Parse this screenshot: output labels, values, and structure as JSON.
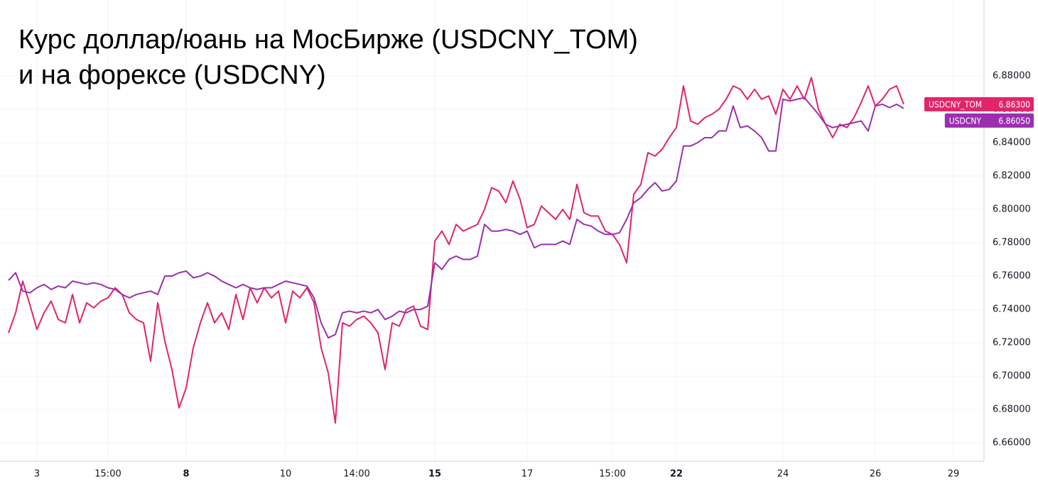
{
  "chart_data": {
    "type": "line",
    "title": [
      "Курс доллар/юань на МосБирже (USDCNY_TOM)",
      "и на форексе (USDCNY)"
    ],
    "categories": [
      null,
      null,
      null,
      null,
      "3",
      null,
      null,
      null,
      null,
      null,
      null,
      null,
      null,
      null,
      "15:00",
      null,
      null,
      null,
      null,
      null,
      null,
      null,
      null,
      null,
      null,
      "8",
      null,
      null,
      null,
      null,
      null,
      null,
      null,
      null,
      null,
      null,
      null,
      null,
      null,
      "10",
      null,
      null,
      null,
      null,
      null,
      null,
      null,
      null,
      null,
      "14:00",
      null,
      null,
      null,
      null,
      null,
      null,
      null,
      null,
      null,
      null,
      "15",
      null,
      null,
      null,
      null,
      null,
      null,
      null,
      null,
      null,
      null,
      null,
      null,
      "17",
      null,
      null,
      null,
      null,
      null,
      null,
      null,
      null,
      null,
      null,
      null,
      "15:00",
      null,
      null,
      null,
      null,
      null,
      null,
      null,
      null,
      "22",
      null,
      null,
      null,
      null,
      null,
      null,
      null,
      null,
      null,
      null,
      null,
      null,
      null,
      null,
      "24",
      null,
      null,
      null,
      null,
      null,
      null,
      null,
      null,
      null,
      null,
      null,
      null,
      "26",
      null,
      null,
      null,
      null,
      null,
      null,
      null,
      null,
      null,
      null,
      "29",
      null,
      null,
      null,
      null
    ],
    "series": [
      {
        "name": "USDCNY_TOM",
        "color": "#e2246a",
        "price_tag": {
          "value": 6.863,
          "label": "6.86300"
        },
        "values": [
          6.726,
          6.738,
          6.757,
          6.743,
          6.728,
          6.738,
          6.745,
          6.734,
          6.732,
          6.749,
          6.732,
          6.744,
          6.741,
          6.745,
          6.747,
          6.753,
          6.749,
          6.738,
          6.734,
          6.732,
          6.709,
          6.744,
          6.721,
          6.704,
          6.681,
          6.693,
          6.717,
          6.732,
          6.744,
          6.732,
          6.738,
          6.728,
          6.749,
          6.734,
          6.753,
          6.744,
          6.753,
          6.747,
          6.751,
          6.732,
          6.751,
          6.747,
          6.753,
          6.744,
          6.717,
          6.702,
          6.672,
          6.732,
          6.73,
          6.734,
          6.736,
          6.732,
          6.726,
          6.704,
          6.732,
          6.73,
          6.74,
          6.742,
          6.73,
          6.728,
          6.781,
          6.787,
          6.779,
          6.791,
          6.787,
          6.789,
          6.791,
          6.8,
          6.813,
          6.811,
          6.804,
          6.817,
          6.806,
          6.789,
          6.791,
          6.802,
          6.798,
          6.794,
          6.8,
          6.794,
          6.815,
          6.798,
          6.796,
          6.796,
          6.787,
          6.785,
          6.779,
          6.768,
          6.809,
          6.815,
          6.834,
          6.832,
          6.836,
          6.843,
          6.849,
          6.874,
          6.853,
          6.851,
          6.855,
          6.857,
          6.86,
          6.866,
          6.874,
          6.872,
          6.866,
          6.872,
          6.866,
          6.868,
          6.857,
          6.872,
          6.866,
          6.874,
          6.866,
          6.879,
          6.86,
          6.851,
          6.843,
          6.851,
          6.849,
          6.855,
          6.864,
          6.874,
          6.862,
          6.866,
          6.872,
          6.874,
          6.863,
          null,
          null,
          null,
          null,
          null,
          null,
          null,
          null,
          null,
          null,
          null
        ]
      },
      {
        "name": "USDCNY",
        "color": "#9b2fae",
        "price_tag": {
          "value": 6.8605,
          "label": "6.86050"
        },
        "values": [
          6.7575,
          6.762,
          6.751,
          6.75,
          6.753,
          6.755,
          6.752,
          6.754,
          6.753,
          6.757,
          6.756,
          6.755,
          6.756,
          6.755,
          6.753,
          6.752,
          6.749,
          6.747,
          6.749,
          6.75,
          6.751,
          6.749,
          6.76,
          6.76,
          6.762,
          6.763,
          6.759,
          6.76,
          6.762,
          6.76,
          6.757,
          6.755,
          6.753,
          6.755,
          6.753,
          6.752,
          6.753,
          6.753,
          6.755,
          6.757,
          6.756,
          6.755,
          6.754,
          6.747,
          6.732,
          6.723,
          6.725,
          6.738,
          6.739,
          6.738,
          6.739,
          6.738,
          6.74,
          6.734,
          6.736,
          6.739,
          6.738,
          6.74,
          6.74,
          6.742,
          6.768,
          6.764,
          6.77,
          6.772,
          6.77,
          6.77,
          6.772,
          6.791,
          6.787,
          6.787,
          6.788,
          6.787,
          6.785,
          6.787,
          6.777,
          6.779,
          6.779,
          6.779,
          6.781,
          6.779,
          6.794,
          6.791,
          6.79,
          6.787,
          6.785,
          6.785,
          6.786,
          6.794,
          6.804,
          6.807,
          6.812,
          6.816,
          6.811,
          6.812,
          6.817,
          6.838,
          6.838,
          6.84,
          6.843,
          6.843,
          6.847,
          6.847,
          6.862,
          6.849,
          6.85,
          6.847,
          6.843,
          6.835,
          6.835,
          6.866,
          6.865,
          6.866,
          6.867,
          6.862,
          6.857,
          6.851,
          6.849,
          6.85,
          6.851,
          6.852,
          6.853,
          6.847,
          6.862,
          6.863,
          6.861,
          6.863,
          6.8605,
          null,
          null,
          null,
          null,
          null,
          null,
          null,
          null,
          null,
          null,
          null
        ]
      }
    ],
    "ylim": [
      6.649,
      6.9255
    ],
    "yticks": [
      {
        "value": 6.66,
        "label": "6.66000"
      },
      {
        "value": 6.68,
        "label": "6.68000"
      },
      {
        "value": 6.7,
        "label": "6.70000"
      },
      {
        "value": 6.72,
        "label": "6.72000"
      },
      {
        "value": 6.74,
        "label": "6.74000"
      },
      {
        "value": 6.76,
        "label": "6.76000"
      },
      {
        "value": 6.78,
        "label": "6.78000"
      },
      {
        "value": 6.8,
        "label": "6.80000"
      },
      {
        "value": 6.82,
        "label": "6.82000"
      },
      {
        "value": 6.84,
        "label": "6.84000"
      },
      {
        "value": 6.86,
        "label": "6.86000"
      },
      {
        "value": 6.88,
        "label": "6.88000"
      }
    ],
    "grid": true
  }
}
